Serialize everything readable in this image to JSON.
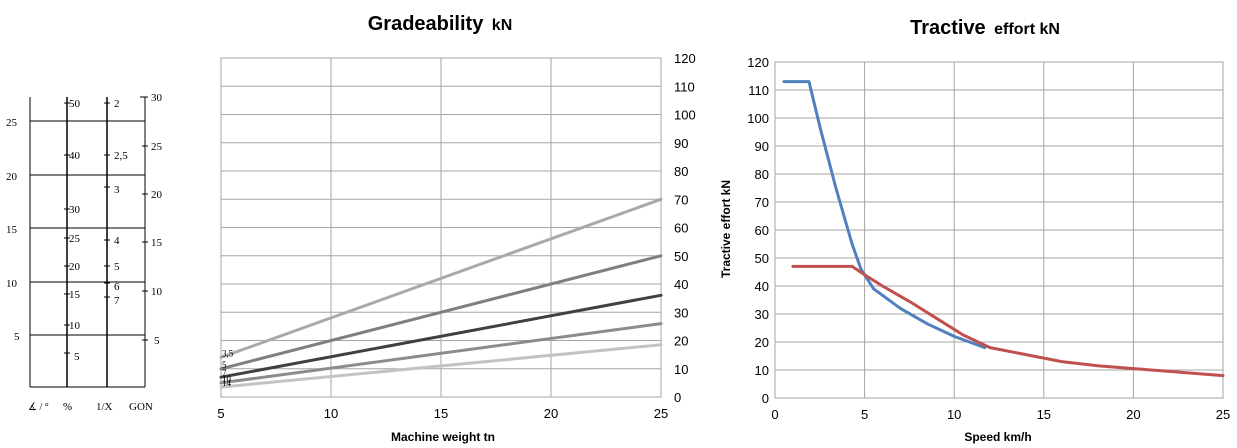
{
  "chart_data": [
    {
      "type": "nomogram",
      "scales": [
        {
          "label": "∡ / °",
          "ticks": [
            "5",
            "10",
            "15",
            "20",
            "25"
          ],
          "values": [
            5,
            10,
            15,
            20,
            25
          ]
        },
        {
          "label": "%",
          "ticks": [
            "5",
            "10",
            "15",
            "20",
            "25",
            "30",
            "40",
            "50"
          ],
          "values": [
            5,
            10,
            15,
            20,
            25,
            30,
            40,
            50
          ]
        },
        {
          "label": "1/X",
          "ticks": [
            "2",
            "2,5",
            "3",
            "4",
            "5",
            "6",
            "7"
          ],
          "values": [
            2,
            2.5,
            3,
            4,
            5,
            6,
            7
          ]
        },
        {
          "label": "GON",
          "ticks": [
            "5",
            "10",
            "15",
            "20",
            "25",
            "30"
          ],
          "values": [
            5,
            10,
            15,
            20,
            25,
            30
          ]
        }
      ]
    },
    {
      "type": "line",
      "title_main": "Gradeability",
      "title_unit": "kN",
      "xlabel": "Machine weight tn",
      "ylabel": "",
      "xlim": [
        5,
        25
      ],
      "ylim": [
        0,
        120
      ],
      "xticks": [
        "5",
        "10",
        "15",
        "20",
        "25"
      ],
      "yticks": [
        "0",
        "10",
        "20",
        "30",
        "40",
        "50",
        "60",
        "70",
        "80",
        "90",
        "100",
        "110",
        "120"
      ],
      "yaxis_side": "right",
      "grid": true,
      "series": [
        {
          "name": "3,5",
          "x": [
            5,
            25
          ],
          "y": [
            14,
            70
          ],
          "color": "#a9a9a9"
        },
        {
          "name": "5",
          "x": [
            5,
            25
          ],
          "y": [
            10,
            50
          ],
          "color": "#7f7f7f"
        },
        {
          "name": "7",
          "x": [
            5,
            25
          ],
          "y": [
            7,
            36
          ],
          "color": "#404040"
        },
        {
          "name": "10",
          "x": [
            5,
            25
          ],
          "y": [
            5,
            26
          ],
          "color": "#8c8c8c"
        },
        {
          "name": "14",
          "x": [
            5,
            25
          ],
          "y": [
            3.5,
            18.5
          ],
          "color": "#c3c3c3"
        }
      ]
    },
    {
      "type": "line",
      "title_main": "Tractive",
      "title_unit": "effort kN",
      "xlabel": "Speed km/h",
      "ylabel": "Tractive effort kN",
      "xlim": [
        0,
        25
      ],
      "ylim": [
        0,
        120
      ],
      "xticks": [
        "0",
        "5",
        "10",
        "15",
        "20",
        "25"
      ],
      "yticks": [
        "0",
        "10",
        "20",
        "30",
        "40",
        "50",
        "60",
        "70",
        "80",
        "90",
        "100",
        "110",
        "120"
      ],
      "grid": true,
      "series": [
        {
          "x": [
            0.5,
            1.9,
            2.5,
            3.4,
            4.3,
            4.8,
            5.5,
            7,
            8.5,
            10,
            11.7
          ],
          "y": [
            113,
            113,
            97,
            75,
            55,
            46,
            39,
            32,
            26.5,
            22,
            18
          ],
          "color": "#4f81bd"
        },
        {
          "x": [
            1,
            2,
            4.3,
            5,
            6,
            7.5,
            9,
            10.5,
            12,
            14,
            16,
            18,
            20,
            22,
            25
          ],
          "y": [
            47,
            47,
            47,
            44,
            40,
            34.5,
            28.5,
            22.5,
            18,
            15.5,
            13,
            11.5,
            10.5,
            9.5,
            8
          ],
          "color": "#c0504d"
        }
      ]
    }
  ]
}
